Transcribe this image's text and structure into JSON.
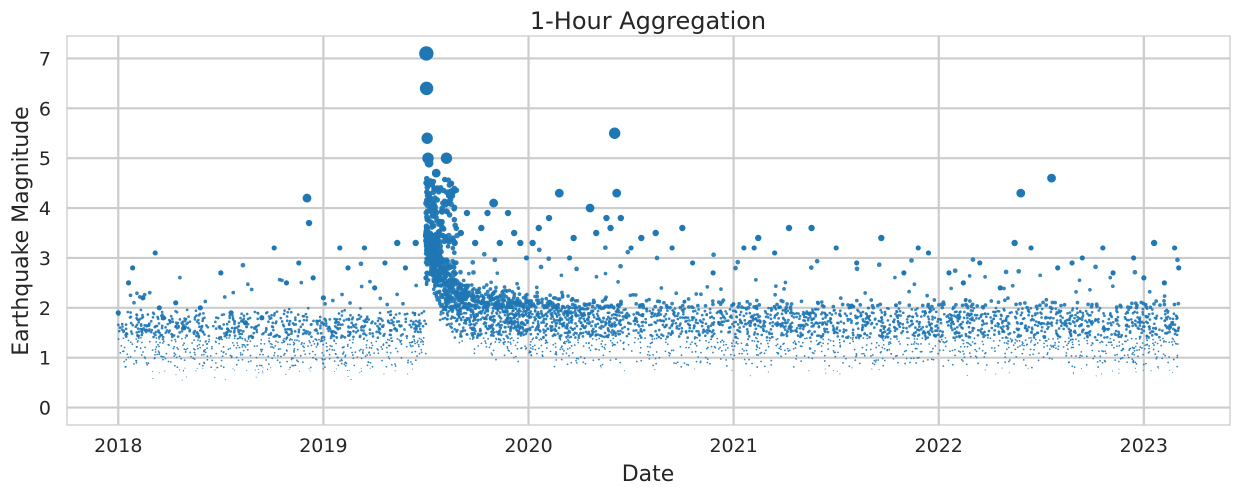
{
  "chart_data": {
    "type": "scatter",
    "title": "1-Hour Aggregation",
    "xlabel": "Date",
    "ylabel": "Earthquake Magnitude",
    "x_ticks": [
      "2018",
      "2019",
      "2020",
      "2021",
      "2022",
      "2023"
    ],
    "y_ticks": [
      "0",
      "1",
      "2",
      "3",
      "4",
      "5",
      "6",
      "7"
    ],
    "xlim": [
      2017.75,
      2023.42
    ],
    "ylim": [
      -0.35,
      7.45
    ],
    "grid": true,
    "marker_size_scales_with_magnitude": true,
    "series": [
      {
        "name": "Earthquake Magnitude",
        "color": "#1f77b4",
        "x": [
          2018.0,
          2018.05,
          2018.07,
          2018.12,
          2018.18,
          2018.2,
          2018.22,
          2018.28,
          2018.32,
          2018.4,
          2018.5,
          2018.55,
          2018.62,
          2018.7,
          2018.76,
          2018.82,
          2018.88,
          2018.92,
          2018.93,
          2018.95,
          2019.0,
          2019.08,
          2019.12,
          2019.2,
          2019.25,
          2019.3,
          2019.36,
          2019.4,
          2019.45,
          2019.5,
          2019.502,
          2019.503,
          2019.506,
          2019.51,
          2019.515,
          2019.52,
          2019.53,
          2019.55,
          2019.58,
          2019.6,
          2019.62,
          2019.64,
          2019.67,
          2019.7,
          2019.74,
          2019.77,
          2019.8,
          2019.83,
          2019.86,
          2019.9,
          2019.93,
          2019.96,
          2019.99,
          2020.02,
          2020.05,
          2020.1,
          2020.15,
          2020.2,
          2020.22,
          2020.3,
          2020.33,
          2020.38,
          2020.4,
          2020.42,
          2020.43,
          2020.45,
          2020.5,
          2020.55,
          2020.62,
          2020.7,
          2020.75,
          2020.8,
          2020.9,
          2021.05,
          2021.1,
          2021.12,
          2021.2,
          2021.27,
          2021.38,
          2021.5,
          2021.6,
          2021.72,
          2021.83,
          2021.9,
          2021.95,
          2022.05,
          2022.12,
          2022.2,
          2022.3,
          2022.37,
          2022.4,
          2022.45,
          2022.55,
          2022.58,
          2022.65,
          2022.7,
          2022.8,
          2022.85,
          2022.95,
          2023.0,
          2023.05,
          2023.1,
          2023.15,
          2023.17
        ],
        "y": [
          1.9,
          2.5,
          2.8,
          2.2,
          3.1,
          2.0,
          1.8,
          2.1,
          1.6,
          2.0,
          2.7,
          1.9,
          1.7,
          1.8,
          3.2,
          2.5,
          2.9,
          4.2,
          3.7,
          2.6,
          2.2,
          3.2,
          2.8,
          3.2,
          2.4,
          2.9,
          3.3,
          2.8,
          3.3,
          2.6,
          7.1,
          6.4,
          5.4,
          5.0,
          4.9,
          4.5,
          4.0,
          4.7,
          3.6,
          5.0,
          4.3,
          3.3,
          3.5,
          3.9,
          3.3,
          3.6,
          3.9,
          4.1,
          3.3,
          3.9,
          3.5,
          3.3,
          3.0,
          3.3,
          3.6,
          3.8,
          4.3,
          3.0,
          3.4,
          4.0,
          3.5,
          3.8,
          3.6,
          5.5,
          4.3,
          3.8,
          3.2,
          3.4,
          3.5,
          3.2,
          3.6,
          2.9,
          2.7,
          3.2,
          3.2,
          3.4,
          3.1,
          3.6,
          3.6,
          3.2,
          2.9,
          3.4,
          2.7,
          3.2,
          3.1,
          2.7,
          2.5,
          2.9,
          2.4,
          3.3,
          4.3,
          3.2,
          4.6,
          2.8,
          2.9,
          3.0,
          3.2,
          2.7,
          3.0,
          2.6,
          3.3,
          2.5,
          3.2,
          2.8
        ]
      }
    ]
  }
}
